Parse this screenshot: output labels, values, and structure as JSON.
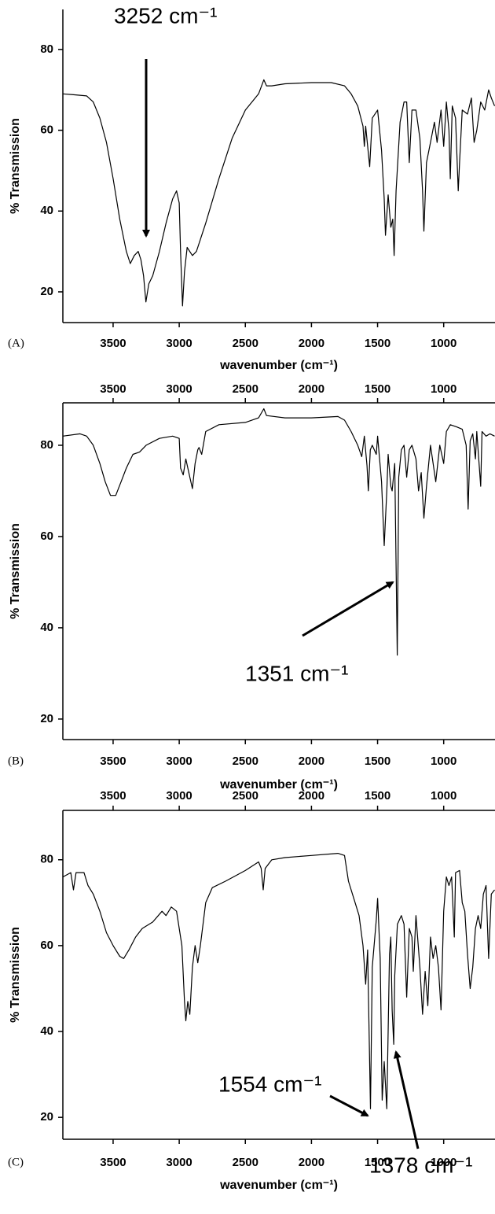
{
  "chart_data": [
    {
      "type": "line",
      "panel_label": "(A)",
      "xlabel": "wavenumber (cm⁻¹)",
      "ylabel": "% Transmission",
      "annotations": [
        {
          "text": "3252 cm⁻¹"
        }
      ],
      "xlim": [
        3880,
        612
      ],
      "ylim": [
        12.4,
        89.9
      ],
      "xticks": [
        3500,
        3000,
        2500,
        2000,
        1500,
        1000
      ],
      "yticks": [
        20,
        40,
        60,
        80
      ],
      "top_ticks": false,
      "color": "#000000",
      "x": [
        3880,
        3800,
        3700,
        3650,
        3600,
        3550,
        3500,
        3450,
        3400,
        3370,
        3340,
        3310,
        3290,
        3270,
        3252,
        3230,
        3200,
        3150,
        3100,
        3050,
        3020,
        3000,
        2990,
        2975,
        2960,
        2940,
        2900,
        2870,
        2800,
        2700,
        2600,
        2500,
        2400,
        2360,
        2340,
        2300,
        2200,
        2000,
        1850,
        1750,
        1700,
        1650,
        1610,
        1600,
        1590,
        1560,
        1540,
        1500,
        1470,
        1450,
        1440,
        1420,
        1400,
        1385,
        1375,
        1360,
        1330,
        1300,
        1280,
        1260,
        1240,
        1210,
        1180,
        1160,
        1150,
        1130,
        1100,
        1070,
        1050,
        1020,
        1000,
        980,
        960,
        950,
        935,
        910,
        890,
        880,
        860,
        820,
        790,
        770,
        750,
        720,
        690,
        660,
        640,
        615
      ],
      "values": [
        69,
        68.8,
        68.5,
        67,
        63,
        57,
        48,
        38,
        30,
        27,
        29,
        30,
        28,
        24,
        17.5,
        22,
        24,
        30,
        37,
        43,
        45,
        42,
        30,
        16.5,
        25,
        31,
        29,
        30,
        37,
        48,
        58,
        65,
        69,
        72.5,
        71,
        71,
        71.5,
        71.8,
        71.8,
        71,
        69,
        66,
        61,
        56,
        61,
        51,
        63,
        65,
        55,
        43,
        34,
        44,
        36,
        38,
        29,
        45,
        62,
        67,
        67,
        52,
        65,
        65,
        58,
        45,
        35,
        52,
        57,
        62,
        57,
        65,
        56,
        67,
        60,
        48,
        66,
        63,
        45,
        52,
        65,
        64,
        68,
        57,
        60,
        67,
        65,
        70,
        68,
        66
      ]
    },
    {
      "type": "line",
      "panel_label": "(B)",
      "xlabel": "wavenumber (cm⁻¹)",
      "ylabel": "% Transmission",
      "annotations": [
        {
          "text": "1351 cm⁻¹"
        }
      ],
      "xlim": [
        3880,
        612
      ],
      "ylim": [
        15.5,
        89.3
      ],
      "xticks": [
        3500,
        3000,
        2500,
        2000,
        1500,
        1000
      ],
      "yticks": [
        20,
        40,
        60,
        80
      ],
      "top_ticks": true,
      "color": "#000000",
      "x": [
        3880,
        3750,
        3700,
        3650,
        3600,
        3560,
        3520,
        3480,
        3440,
        3400,
        3350,
        3300,
        3250,
        3150,
        3050,
        3000,
        2990,
        2970,
        2950,
        2920,
        2900,
        2880,
        2860,
        2850,
        2830,
        2800,
        2700,
        2500,
        2400,
        2360,
        2340,
        2200,
        2000,
        1800,
        1750,
        1700,
        1650,
        1620,
        1600,
        1580,
        1570,
        1555,
        1540,
        1510,
        1500,
        1470,
        1450,
        1430,
        1420,
        1400,
        1390,
        1370,
        1351,
        1340,
        1320,
        1300,
        1280,
        1260,
        1240,
        1210,
        1190,
        1170,
        1150,
        1130,
        1100,
        1060,
        1030,
        1000,
        980,
        950,
        900,
        860,
        830,
        815,
        800,
        780,
        760,
        750,
        720,
        710,
        680,
        650,
        615
      ],
      "values": [
        82,
        82.5,
        82,
        80,
        76,
        72,
        69,
        69,
        72,
        75,
        78,
        78.5,
        80,
        81.5,
        82,
        81.5,
        75,
        73.5,
        77,
        73,
        70.5,
        76,
        79,
        79.5,
        78,
        83,
        84.5,
        85,
        86,
        88,
        86.5,
        86,
        86,
        86.3,
        85.5,
        83,
        80,
        77.5,
        82,
        75.5,
        70,
        79,
        80,
        78,
        82,
        72,
        58,
        70,
        78,
        71,
        70,
        76,
        34,
        73,
        79,
        80,
        73,
        79,
        80,
        77,
        70,
        74,
        64,
        71,
        80,
        72,
        80,
        76,
        83,
        84.5,
        84,
        83.5,
        80,
        66,
        81,
        82.5,
        77,
        83,
        71,
        83,
        82,
        82.5,
        82
      ]
    },
    {
      "type": "line",
      "panel_label": "(C)",
      "xlabel": "wavenumber (cm⁻¹)",
      "ylabel": "% Transmission",
      "annotations": [
        {
          "text": "1554 cm⁻¹"
        },
        {
          "text": "1378 cm⁻¹"
        }
      ],
      "xlim": [
        3880,
        612
      ],
      "ylim": [
        14.9,
        91.5
      ],
      "xticks": [
        3500,
        3000,
        2500,
        2000,
        1500,
        1000
      ],
      "yticks": [
        20,
        40,
        60,
        80
      ],
      "top_ticks": true,
      "color": "#000000",
      "x": [
        3880,
        3820,
        3800,
        3780,
        3720,
        3690,
        3650,
        3600,
        3550,
        3500,
        3450,
        3420,
        3380,
        3330,
        3280,
        3200,
        3130,
        3100,
        3060,
        3020,
        2980,
        2960,
        2950,
        2935,
        2920,
        2900,
        2880,
        2860,
        2840,
        2800,
        2750,
        2650,
        2500,
        2400,
        2380,
        2365,
        2350,
        2300,
        2200,
        2000,
        1800,
        1750,
        1720,
        1680,
        1640,
        1610,
        1590,
        1575,
        1554,
        1540,
        1510,
        1500,
        1480,
        1465,
        1450,
        1430,
        1410,
        1400,
        1390,
        1378,
        1370,
        1350,
        1320,
        1300,
        1280,
        1260,
        1240,
        1230,
        1210,
        1180,
        1160,
        1140,
        1120,
        1100,
        1080,
        1060,
        1040,
        1020,
        1000,
        980,
        960,
        940,
        920,
        910,
        880,
        860,
        840,
        820,
        800,
        780,
        760,
        740,
        720,
        700,
        680,
        660,
        640,
        615
      ],
      "values": [
        76,
        77,
        73,
        77,
        77,
        74,
        72,
        68,
        63,
        60,
        57.5,
        57,
        59,
        62,
        64,
        65.5,
        68,
        67,
        69,
        68,
        60,
        47,
        42.5,
        47,
        44,
        55,
        60,
        56,
        60,
        70,
        73.5,
        75,
        77.5,
        79.5,
        78,
        73,
        78,
        80,
        80.5,
        81,
        81.5,
        81,
        75,
        71,
        67,
        60,
        51,
        59,
        22,
        55,
        66,
        71,
        57,
        24,
        33,
        22,
        58,
        62,
        45,
        37,
        53,
        65,
        67,
        65,
        48,
        64,
        62,
        54,
        67,
        55,
        44,
        54,
        46,
        62,
        57,
        60,
        55,
        45,
        68,
        76,
        74,
        76,
        62,
        77,
        77.5,
        70,
        68,
        58,
        50,
        55,
        64,
        67,
        64,
        72,
        74,
        57,
        72,
        73
      ]
    }
  ]
}
